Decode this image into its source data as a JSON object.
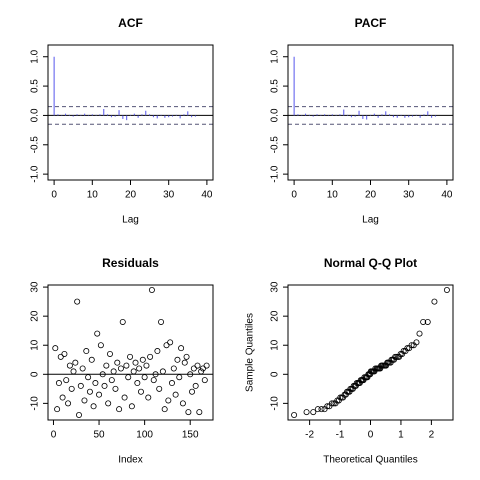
{
  "chart_data": [
    {
      "type": "stem",
      "title": "ACF",
      "xlabel": "Lag",
      "x": [
        0,
        1,
        2,
        3,
        4,
        5,
        6,
        7,
        8,
        9,
        10,
        11,
        12,
        13,
        14,
        15,
        16,
        17,
        18,
        19,
        20,
        21,
        22,
        23,
        24,
        25,
        26,
        27,
        28,
        29,
        30,
        31,
        32,
        33,
        34,
        35,
        36,
        37
      ],
      "values": [
        1,
        0.02,
        -0.01,
        0.03,
        0.01,
        -0.02,
        0.02,
        0.01,
        0.03,
        -0.01,
        0.02,
        0.01,
        0.02,
        0.11,
        0.02,
        -0.03,
        -0.02,
        0.09,
        -0.06,
        -0.08,
        0.01,
        0.03,
        -0.04,
        0.02,
        0.08,
        0.02,
        -0.03,
        -0.05,
        0.01,
        -0.04,
        -0.03,
        -0.02,
        0.01,
        -0.05,
        0.02,
        0.07,
        -0.03,
        -0.02
      ],
      "color": "#5555ee",
      "hlines": [
        0.15,
        -0.15
      ],
      "hline_style": "dashed",
      "hline_color": "#555577",
      "xlim": [
        -1.6,
        41.6
      ],
      "ylim": [
        -1.1,
        1.2
      ],
      "xticks": [
        0,
        10,
        20,
        30,
        40
      ],
      "yticks": [
        {
          "value": -1,
          "label": "-1.0"
        },
        {
          "value": -0.5,
          "label": "-0.5"
        },
        {
          "value": 0,
          "label": "0.0"
        },
        {
          "value": 0.5,
          "label": "0.5"
        },
        {
          "value": 1,
          "label": "1.0"
        }
      ]
    },
    {
      "type": "stem",
      "title": "PACF",
      "xlabel": "Lag",
      "x": [
        0,
        1,
        2,
        3,
        4,
        5,
        6,
        7,
        8,
        9,
        10,
        11,
        12,
        13,
        14,
        15,
        16,
        17,
        18,
        19,
        20,
        21,
        22,
        23,
        24,
        25,
        26,
        27,
        28,
        29,
        30,
        31,
        32,
        33,
        34,
        35,
        36,
        37
      ],
      "values": [
        1,
        0.02,
        -0.01,
        0.03,
        0.01,
        -0.02,
        0.02,
        0.01,
        0.02,
        -0.01,
        0.02,
        0.01,
        0.02,
        0.1,
        0.01,
        -0.03,
        -0.02,
        0.08,
        -0.06,
        -0.07,
        0.01,
        0.03,
        -0.04,
        0.02,
        0.07,
        0.02,
        -0.03,
        -0.04,
        0.01,
        -0.04,
        -0.03,
        -0.02,
        0.01,
        -0.04,
        0.02,
        0.07,
        -0.04,
        -0.02
      ],
      "color": "#5555ee",
      "hlines": [
        0.15,
        -0.15
      ],
      "hline_style": "dashed",
      "hline_color": "#555577",
      "xlim": [
        -1.6,
        41.6
      ],
      "ylim": [
        -1.1,
        1.2
      ],
      "xticks": [
        0,
        10,
        20,
        30,
        40
      ],
      "yticks": [
        {
          "value": -1,
          "label": "-1.0"
        },
        {
          "value": -0.5,
          "label": "-0.5"
        },
        {
          "value": 0,
          "label": "0.0"
        },
        {
          "value": 0.5,
          "label": "0.5"
        },
        {
          "value": 1,
          "label": "1.0"
        }
      ]
    },
    {
      "type": "scatter",
      "title": "Residuals",
      "xlabel": "Index",
      "x": [
        2,
        4,
        6,
        8,
        10,
        12,
        14,
        16,
        18,
        20,
        22,
        24,
        26,
        28,
        30,
        32,
        34,
        36,
        38,
        40,
        42,
        44,
        46,
        48,
        50,
        52,
        54,
        56,
        58,
        60,
        62,
        64,
        66,
        68,
        70,
        72,
        74,
        76,
        78,
        80,
        82,
        84,
        86,
        88,
        90,
        92,
        94,
        96,
        98,
        100,
        102,
        104,
        106,
        108,
        110,
        112,
        114,
        116,
        118,
        120,
        122,
        124,
        126,
        128,
        130,
        132,
        134,
        136,
        138,
        140,
        142,
        144,
        146,
        148,
        150,
        152,
        154,
        156,
        158,
        160,
        162,
        164,
        166,
        168
      ],
      "values": [
        9,
        -12,
        -3,
        6,
        -8,
        7,
        -2,
        -10,
        3,
        -5,
        1,
        4,
        25,
        -14,
        -4,
        2,
        -9,
        8,
        -1,
        -6,
        5,
        -11,
        -3,
        14,
        -7,
        10,
        0,
        -4,
        3,
        -10,
        7,
        -2,
        1,
        -5,
        4,
        -12,
        2,
        18,
        -8,
        3,
        -1,
        6,
        -11,
        1,
        4,
        -3,
        2,
        -6,
        5,
        -1,
        3,
        -8,
        6,
        29,
        -2,
        0,
        8,
        -5,
        18,
        1,
        -12,
        10,
        -9,
        11,
        -3,
        2,
        -7,
        5,
        -1,
        9,
        -10,
        4,
        6,
        -13,
        0,
        -6,
        2,
        -4,
        3,
        -13,
        1,
        2,
        -2,
        3
      ],
      "color": "#000000",
      "hlines": [
        0
      ],
      "hline_style": "solid",
      "hline_color": "#000000",
      "xlim": [
        -6,
        175
      ],
      "ylim": [
        -15.72,
        30.72
      ],
      "xticks": [
        0,
        50,
        100,
        150
      ],
      "yticks": [
        -10,
        0,
        10,
        20,
        30
      ]
    },
    {
      "type": "scatter",
      "title": "Normal Q-Q Plot",
      "xlabel": "Theoretical Quantiles",
      "ylabel": "Sample Quantiles",
      "x": [
        -2.51,
        -2.1,
        -1.88,
        -1.73,
        -1.61,
        -1.51,
        -1.42,
        -1.35,
        -1.27,
        -1.21,
        -1.15,
        -1.09,
        -1.04,
        -0.99,
        -0.94,
        -0.9,
        -0.85,
        -0.81,
        -0.77,
        -0.73,
        -0.69,
        -0.66,
        -0.62,
        -0.58,
        -0.55,
        -0.51,
        -0.48,
        -0.45,
        -0.41,
        -0.38,
        -0.35,
        -0.32,
        -0.29,
        -0.26,
        -0.23,
        -0.2,
        -0.16,
        -0.13,
        -0.1,
        -0.07,
        -0.04,
        -0.01,
        0.01,
        0.04,
        0.07,
        0.1,
        0.13,
        0.16,
        0.2,
        0.23,
        0.26,
        0.29,
        0.32,
        0.35,
        0.38,
        0.41,
        0.45,
        0.48,
        0.51,
        0.55,
        0.58,
        0.62,
        0.66,
        0.69,
        0.73,
        0.77,
        0.81,
        0.85,
        0.9,
        0.94,
        0.99,
        1.04,
        1.09,
        1.15,
        1.21,
        1.27,
        1.35,
        1.42,
        1.51,
        1.61,
        1.73,
        1.88,
        2.1,
        2.51
      ],
      "values": [
        -14,
        -13,
        -13,
        -12,
        -12,
        -12,
        -11,
        -11,
        -10,
        -10,
        -10,
        -9,
        -9,
        -8,
        -8,
        -8,
        -7,
        -7,
        -6,
        -6,
        -6,
        -5,
        -5,
        -5,
        -4,
        -4,
        -4,
        -3,
        -3,
        -3,
        -3,
        -2,
        -2,
        -2,
        -2,
        -1,
        -1,
        -1,
        -1,
        0,
        0,
        0,
        1,
        1,
        1,
        1,
        1,
        2,
        2,
        2,
        2,
        2,
        2,
        3,
        3,
        3,
        3,
        3,
        3,
        4,
        4,
        4,
        4,
        5,
        5,
        5,
        6,
        6,
        6,
        6,
        7,
        7,
        8,
        8,
        9,
        9,
        10,
        10,
        11,
        14,
        18,
        18,
        25,
        29
      ],
      "color": "#000000",
      "xlim": [
        -2.71,
        2.71
      ],
      "ylim": [
        -15.72,
        30.72
      ],
      "xticks": [
        -2,
        -1,
        0,
        1,
        2
      ],
      "yticks": [
        -10,
        0,
        10,
        20,
        30
      ]
    }
  ]
}
